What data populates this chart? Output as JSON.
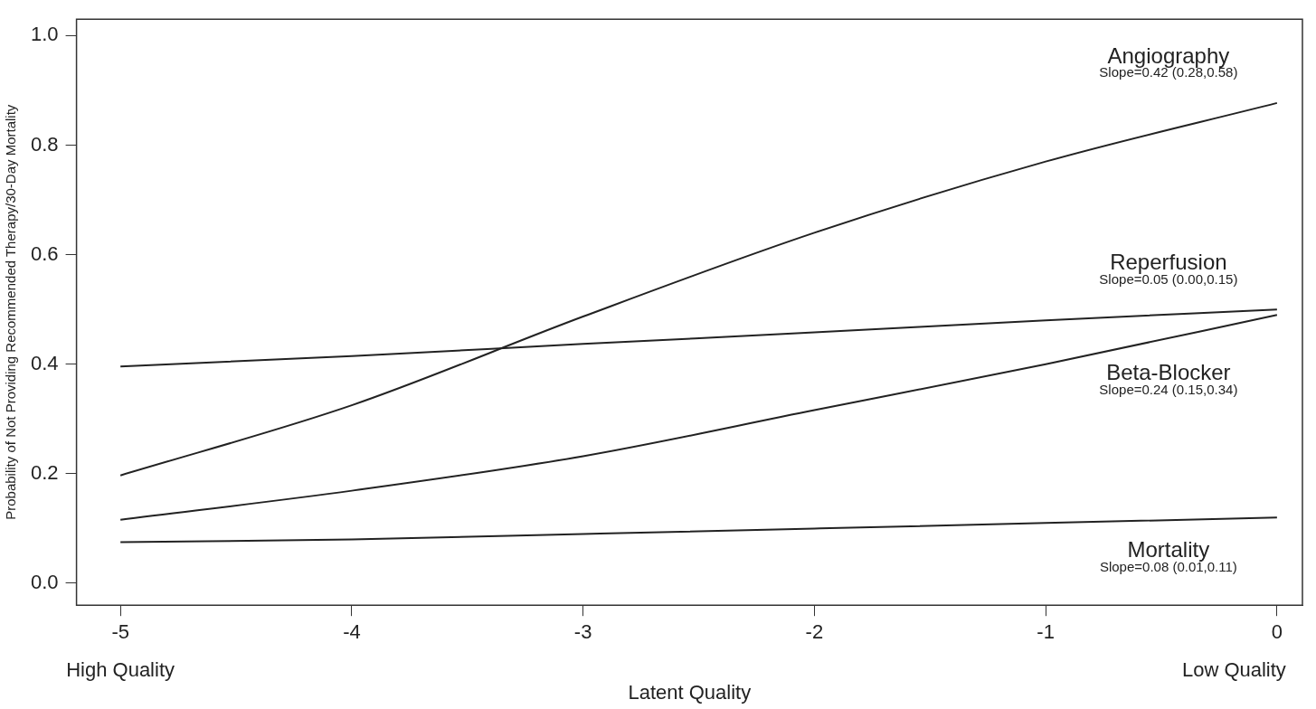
{
  "chart_data": {
    "type": "line",
    "xlabel": "Latent Quality",
    "ylabel": "Probability of Not Providing Recommended Therapy/30-Day Mortality",
    "x": [
      -5,
      -4,
      -3,
      -2,
      -1,
      0
    ],
    "xlim": [
      -5.19,
      0.11
    ],
    "xticks": [
      -5,
      -4,
      -3,
      -2,
      -1,
      0
    ],
    "ylim": [
      -0.04,
      1.03
    ],
    "yticks": [
      {
        "value": 0,
        "label": "0.0"
      },
      0.2,
      0.4,
      0.6,
      0.8,
      {
        "value": 1,
        "label": "1.0"
      }
    ],
    "grid": false,
    "legend": false,
    "marker": "none",
    "line_style": "solid",
    "series": [
      {
        "name": "Angiography",
        "color": "#222222",
        "values": [
          0.197,
          0.325,
          0.487,
          0.64,
          0.77,
          0.877
        ]
      },
      {
        "name": "Reperfusion",
        "color": "#222222",
        "values": [
          0.396,
          0.415,
          0.437,
          0.458,
          0.48,
          0.5
        ]
      },
      {
        "name": "Beta-Blocker",
        "color": "#222222",
        "values": [
          0.116,
          0.169,
          0.232,
          0.316,
          0.4,
          0.49
        ]
      },
      {
        "name": "Mortality",
        "color": "#222222",
        "values": [
          0.075,
          0.08,
          0.09,
          0.1,
          0.11,
          0.12
        ]
      }
    ],
    "annotations": [
      "Slope=0.42 (0.28,0.58)",
      "Slope=0.05 (0.00,0.15)",
      "Slope=0.24 (0.15,0.34)",
      "Slope=0.08 (0.01,0.11)",
      "High Quality",
      "Low Quality"
    ]
  }
}
